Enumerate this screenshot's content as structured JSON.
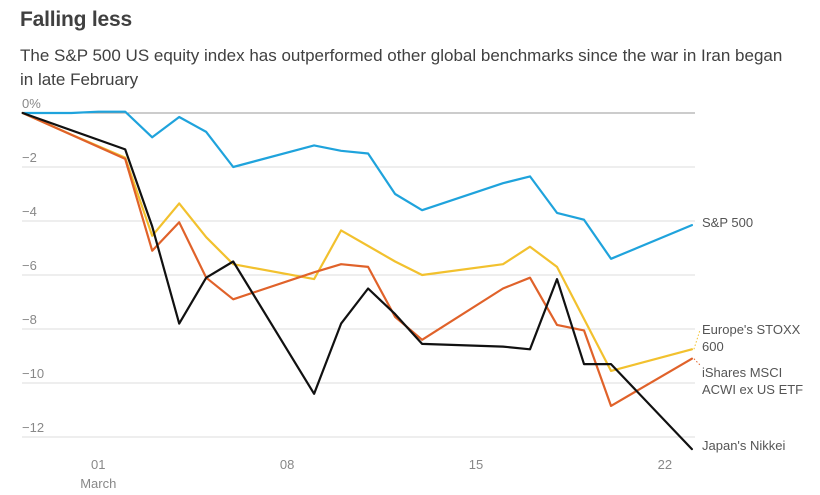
{
  "chart_data": {
    "type": "line",
    "title": "Falling less",
    "subtitle": "The S&P 500 US equity index has outperformed other global benchmarks since the war in Iran began in late February",
    "xlabel": "",
    "ylabel": "",
    "ylim": [
      -12.5,
      0
    ],
    "y_ticks": [
      {
        "value": 0,
        "label": "0%"
      },
      {
        "value": -2,
        "label": "−2"
      },
      {
        "value": -4,
        "label": "−4"
      },
      {
        "value": -6,
        "label": "−6"
      },
      {
        "value": -8,
        "label": "−8"
      },
      {
        "value": -10,
        "label": "−10"
      },
      {
        "value": -12,
        "label": "−12"
      }
    ],
    "x_ticks": [
      {
        "day": 1,
        "label": "01",
        "sublabel": "March"
      },
      {
        "day": 8,
        "label": "08"
      },
      {
        "day": 15,
        "label": "15"
      },
      {
        "day": 22,
        "label": "22"
      }
    ],
    "xlim": [
      -1.9,
      23.3
    ],
    "grid": true,
    "series": [
      {
        "name": "S&P 500",
        "color": "#1fa3dc",
        "label_lines": [
          "S&P 500"
        ],
        "points": [
          [
            -1.8,
            0
          ],
          [
            0,
            0
          ],
          [
            1,
            0.05
          ],
          [
            2,
            0.05
          ],
          [
            3,
            -0.9
          ],
          [
            4,
            -0.15
          ],
          [
            5,
            -0.7
          ],
          [
            6,
            -2
          ],
          [
            9,
            -1.2
          ],
          [
            10,
            -1.4
          ],
          [
            11,
            -1.5
          ],
          [
            12,
            -3
          ],
          [
            13,
            -3.6
          ],
          [
            16,
            -2.6
          ],
          [
            17,
            -2.35
          ],
          [
            18,
            -3.7
          ],
          [
            19,
            -3.95
          ],
          [
            20,
            -5.4
          ],
          [
            23,
            -4.15
          ]
        ]
      },
      {
        "name": "Europe's STOXX 600",
        "color": "#f2c12e",
        "label_lines": [
          "Europe's STOXX",
          "600"
        ],
        "points": [
          [
            -1.8,
            0
          ],
          [
            0,
            -0.8
          ],
          [
            2,
            -1.65
          ],
          [
            3,
            -4.55
          ],
          [
            4,
            -3.35
          ],
          [
            5,
            -4.6
          ],
          [
            6,
            -5.6
          ],
          [
            9,
            -6.15
          ],
          [
            10,
            -4.35
          ],
          [
            12,
            -5.5
          ],
          [
            13,
            -6
          ],
          [
            16,
            -5.6
          ],
          [
            17,
            -4.95
          ],
          [
            18,
            -5.7
          ],
          [
            20,
            -9.55
          ],
          [
            23,
            -8.75
          ]
        ]
      },
      {
        "name": "iShares MSCI ACWI ex US ETF",
        "color": "#e0622a",
        "label_lines": [
          "iShares MSCI",
          "ACWI ex US ETF"
        ],
        "points": [
          [
            -1.8,
            0
          ],
          [
            2,
            -1.7
          ],
          [
            3,
            -5.1
          ],
          [
            4,
            -4.05
          ],
          [
            5,
            -6.1
          ],
          [
            6,
            -6.9
          ],
          [
            9,
            -5.9
          ],
          [
            10,
            -5.6
          ],
          [
            11,
            -5.7
          ],
          [
            12,
            -7.55
          ],
          [
            13,
            -8.4
          ],
          [
            16,
            -6.5
          ],
          [
            17,
            -6.1
          ],
          [
            18,
            -7.85
          ],
          [
            19,
            -8.05
          ],
          [
            20,
            -10.85
          ],
          [
            23,
            -9.1
          ]
        ]
      },
      {
        "name": "Japan's Nikkei",
        "color": "#111111",
        "label_lines": [
          "Japan's Nikkei"
        ],
        "points": [
          [
            -1.8,
            0
          ],
          [
            2,
            -1.35
          ],
          [
            3,
            -4.2
          ],
          [
            4,
            -7.8
          ],
          [
            5,
            -6.1
          ],
          [
            6,
            -5.5
          ],
          [
            9,
            -10.4
          ],
          [
            10,
            -7.8
          ],
          [
            11,
            -6.5
          ],
          [
            12,
            -7.45
          ],
          [
            13,
            -8.55
          ],
          [
            16,
            -8.65
          ],
          [
            17,
            -8.75
          ],
          [
            18,
            -6.15
          ],
          [
            19,
            -9.3
          ],
          [
            20,
            -9.3
          ],
          [
            23,
            -12.45
          ]
        ]
      }
    ]
  }
}
